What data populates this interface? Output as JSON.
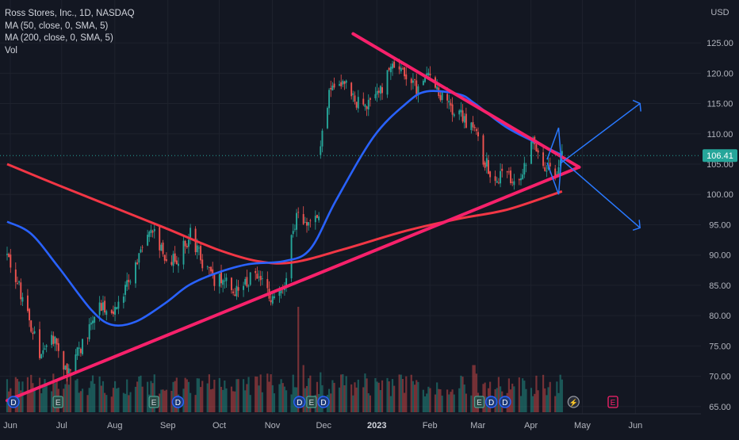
{
  "legend": {
    "line1": "Ross Stores, Inc., 1D, NASDAQ",
    "line2": "MA (50, close, 0, SMA, 5)",
    "line3": "MA (200, close, 0, SMA, 5)",
    "line4": "Vol"
  },
  "currency": "USD",
  "last_price": "106.41",
  "colors": {
    "background": "#131722",
    "up": "#26a69a",
    "down": "#ef5350",
    "ma50": "#2962ff",
    "ma200": "#f23645",
    "trendline": "#f7216b",
    "projection": "#2979ff",
    "axis_text": "#b2b5be",
    "grid": "#1e222d"
  },
  "chart_data": {
    "type": "candlestick",
    "symbol": "Ross Stores, Inc., 1D, NASDAQ",
    "ylim": [
      64,
      129
    ],
    "y_ticks": [
      "125.00",
      "120.00",
      "115.00",
      "110.00",
      "105.00",
      "100.00",
      "95.00",
      "90.00",
      "85.00",
      "80.00",
      "75.00",
      "70.00",
      "65.00"
    ],
    "x_ticks": [
      "Jun",
      "Jul",
      "Aug",
      "Sep",
      "Oct",
      "Nov",
      "Dec",
      "2023",
      "Feb",
      "Mar",
      "Apr",
      "May",
      "Jun"
    ],
    "price_anchors": [
      [
        "2022-06-01",
        90.0
      ],
      [
        "2022-06-10",
        83.0
      ],
      [
        "2022-06-20",
        74.0
      ],
      [
        "2022-06-28",
        76.5
      ],
      [
        "2022-07-06",
        70.5
      ],
      [
        "2022-07-15",
        75.5
      ],
      [
        "2022-07-25",
        82.0
      ],
      [
        "2022-08-03",
        81.0
      ],
      [
        "2022-08-11",
        86.0
      ],
      [
        "2022-08-19",
        91.0
      ],
      [
        "2022-08-26",
        94.0
      ],
      [
        "2022-09-02",
        88.5
      ],
      [
        "2022-09-09",
        89.5
      ],
      [
        "2022-09-16",
        93.5
      ],
      [
        "2022-09-23",
        89.0
      ],
      [
        "2022-09-30",
        85.5
      ],
      [
        "2022-10-07",
        86.0
      ],
      [
        "2022-10-14",
        83.5
      ],
      [
        "2022-10-21",
        86.5
      ],
      [
        "2022-10-28",
        85.5
      ],
      [
        "2022-11-04",
        82.5
      ],
      [
        "2022-11-10",
        84.0
      ],
      [
        "2022-11-14",
        94.0
      ],
      [
        "2022-11-18",
        97.0
      ],
      [
        "2022-11-22",
        95.5
      ],
      [
        "2022-11-30",
        97.5
      ],
      [
        "2022-12-01",
        108.0
      ],
      [
        "2022-12-06",
        117.0
      ],
      [
        "2022-12-15",
        119.0
      ],
      [
        "2022-12-22",
        115.5
      ],
      [
        "2022-12-30",
        115.0
      ],
      [
        "2023-01-06",
        117.5
      ],
      [
        "2023-01-10",
        121.5
      ],
      [
        "2023-01-20",
        119.0
      ],
      [
        "2023-01-26",
        117.5
      ],
      [
        "2023-02-02",
        121.0
      ],
      [
        "2023-02-10",
        116.0
      ],
      [
        "2023-02-17",
        114.0
      ],
      [
        "2023-02-24",
        112.0
      ],
      [
        "2023-03-01",
        111.5
      ],
      [
        "2023-03-06",
        106.0
      ],
      [
        "2023-03-13",
        102.0
      ],
      [
        "2023-03-20",
        104.0
      ],
      [
        "2023-03-24",
        101.5
      ],
      [
        "2023-03-31",
        105.0
      ],
      [
        "2023-04-04",
        109.0
      ],
      [
        "2023-04-11",
        104.5
      ],
      [
        "2023-04-17",
        103.5
      ],
      [
        "2023-04-21",
        106.4
      ]
    ],
    "ma50_anchors": [
      [
        "2022-06-01",
        95.5
      ],
      [
        "2022-06-15",
        93.5
      ],
      [
        "2022-07-01",
        88.0
      ],
      [
        "2022-07-20",
        81.0
      ],
      [
        "2022-08-01",
        78.5
      ],
      [
        "2022-08-15",
        79.0
      ],
      [
        "2022-09-01",
        82.0
      ],
      [
        "2022-09-15",
        85.0
      ],
      [
        "2022-10-01",
        87.0
      ],
      [
        "2022-10-20",
        88.5
      ],
      [
        "2022-11-10",
        89.0
      ],
      [
        "2022-11-25",
        91.0
      ],
      [
        "2022-12-10",
        99.0
      ],
      [
        "2023-01-01",
        109.5
      ],
      [
        "2023-01-20",
        115.0
      ],
      [
        "2023-02-01",
        117.0
      ],
      [
        "2023-02-20",
        116.5
      ],
      [
        "2023-03-01",
        115.0
      ],
      [
        "2023-03-20",
        111.0
      ],
      [
        "2023-04-10",
        108.0
      ],
      [
        "2023-04-21",
        106.5
      ]
    ],
    "ma200_anchors": [
      [
        "2022-06-01",
        105.0
      ],
      [
        "2022-07-01",
        101.5
      ],
      [
        "2022-08-01",
        98.0
      ],
      [
        "2022-09-01",
        94.5
      ],
      [
        "2022-10-01",
        91.0
      ],
      [
        "2022-10-25",
        89.0
      ],
      [
        "2022-11-15",
        88.8
      ],
      [
        "2022-12-15",
        91.0
      ],
      [
        "2023-01-20",
        94.0
      ],
      [
        "2023-02-20",
        96.0
      ],
      [
        "2023-03-20",
        97.5
      ],
      [
        "2023-04-21",
        100.5
      ]
    ],
    "trendlines": [
      {
        "from": [
          "2022-06-01",
          66.0
        ],
        "to": [
          "2023-05-01",
          104.5
        ]
      },
      {
        "from": [
          "2022-12-20",
          126.5
        ],
        "to": [
          "2023-05-01",
          104.5
        ]
      }
    ],
    "projection": {
      "apex": [
        "2023-04-28",
        105.5
      ],
      "up_target": [
        "2023-05-18",
        115.0
      ],
      "down_target": [
        "2023-05-18",
        94.5
      ],
      "up_kink": [
        "2023-04-19",
        111.0
      ],
      "down_kink": [
        "2023-04-19",
        100.0
      ]
    },
    "events": [
      {
        "date": "2022-06-01",
        "letter": "D"
      },
      {
        "date": "2022-06-27",
        "letter": "E"
      },
      {
        "date": "2022-08-22",
        "letter": "E"
      },
      {
        "date": "2022-09-05",
        "letter": "D"
      },
      {
        "date": "2022-11-15",
        "letter": "D"
      },
      {
        "date": "2022-11-22",
        "letter": "E"
      },
      {
        "date": "2022-11-29",
        "letter": "D"
      },
      {
        "date": "2023-02-28",
        "letter": "E"
      },
      {
        "date": "2023-03-07",
        "letter": "D"
      },
      {
        "date": "2023-03-15",
        "letter": "D"
      },
      {
        "date": "2023-04-24",
        "letter": "⚡"
      },
      {
        "date": "2023-05-17",
        "letter": "E"
      }
    ]
  }
}
